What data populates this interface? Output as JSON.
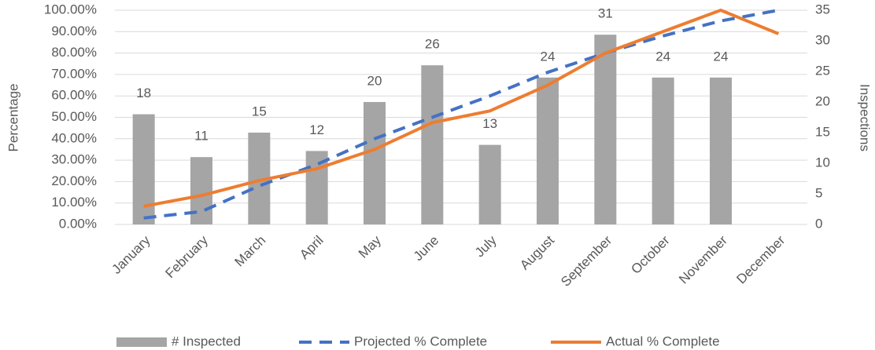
{
  "chart_data": {
    "type": "combo",
    "categories": [
      "January",
      "February",
      "March",
      "April",
      "May",
      "June",
      "July",
      "August",
      "September",
      "October",
      "November",
      "December"
    ],
    "series": [
      {
        "name": "# Inspected",
        "type": "bar",
        "axis": "y2",
        "color": "#a5a5a5",
        "values": [
          18,
          11,
          15,
          12,
          20,
          26,
          13,
          24,
          31,
          24,
          24,
          null
        ]
      },
      {
        "name": "Projected % Complete",
        "type": "line",
        "dash": true,
        "color": "#4472c4",
        "values": [
          3,
          6,
          18,
          28,
          40,
          50,
          60,
          71,
          80,
          88,
          95,
          100
        ]
      },
      {
        "name": "Actual % Complete",
        "type": "line",
        "color": "#ed7d31",
        "values": [
          8.5,
          13.5,
          20.5,
          26,
          35,
          47.5,
          53,
          65,
          80,
          90,
          100,
          89
        ]
      }
    ],
    "ylabel": "Percentage",
    "y2label": "Inspections",
    "ylim": [
      0,
      100
    ],
    "yticks": [
      {
        "value": 0,
        "label": "0.00%"
      },
      {
        "value": 10,
        "label": "10.00%"
      },
      {
        "value": 20,
        "label": "20.00%"
      },
      {
        "value": 30,
        "label": "30.00%"
      },
      {
        "value": 40,
        "label": "40.00%"
      },
      {
        "value": 50,
        "label": "50.00%"
      },
      {
        "value": 60,
        "label": "60.00%"
      },
      {
        "value": 70,
        "label": "70.00%"
      },
      {
        "value": 80,
        "label": "80.00%"
      },
      {
        "value": 90,
        "label": "90.00%"
      },
      {
        "value": 100,
        "label": "100.00%"
      }
    ],
    "y2lim": [
      0,
      35
    ],
    "y2ticks": [
      0,
      5,
      10,
      15,
      20,
      25,
      30,
      35
    ],
    "grid": true,
    "legend": "bottom"
  }
}
